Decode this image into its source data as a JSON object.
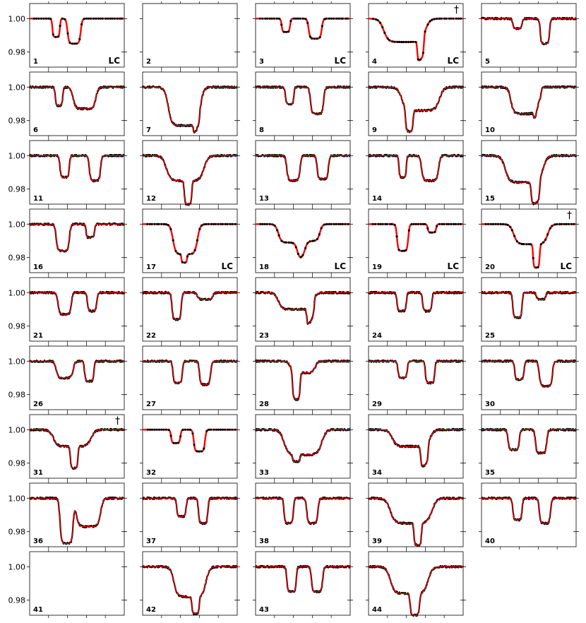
{
  "chart_data": {
    "type": "line",
    "grid": false,
    "y_ticks": [
      "1.00",
      "0.98"
    ],
    "ylim": [
      0.971,
      1.009
    ],
    "xlim": [
      0,
      1
    ],
    "series_colors": {
      "data": "#000000",
      "model": "#ff0000"
    },
    "panels": [
      {
        "id": "1",
        "tag": "LC",
        "dagger": false,
        "empty": false,
        "dips": [
          [
            0.28,
            0.04,
            0.011
          ],
          [
            0.47,
            0.07,
            0.015
          ]
        ],
        "model": "full"
      },
      {
        "id": "2",
        "tag": "",
        "dagger": false,
        "empty": true,
        "dips": [],
        "model": "none"
      },
      {
        "id": "3",
        "tag": "LC",
        "dagger": false,
        "empty": false,
        "dips": [
          [
            0.32,
            0.045,
            0.008
          ],
          [
            0.63,
            0.07,
            0.012
          ]
        ],
        "model": "full"
      },
      {
        "id": "4",
        "tag": "LC",
        "dagger": true,
        "empty": false,
        "dips": [
          [
            0.38,
            0.22,
            0.014
          ],
          [
            0.55,
            0.035,
            0.012
          ]
        ],
        "model": "full"
      },
      {
        "id": "5",
        "tag": "",
        "dagger": false,
        "empty": false,
        "dips": [
          [
            0.38,
            0.05,
            0.006
          ],
          [
            0.67,
            0.05,
            0.015
          ]
        ],
        "model": "partial"
      },
      {
        "id": "6",
        "tag": "",
        "dagger": false,
        "empty": false,
        "dips": [
          [
            0.31,
            0.04,
            0.011
          ],
          [
            0.58,
            0.12,
            0.013
          ]
        ],
        "model": "partial"
      },
      {
        "id": "7",
        "tag": "",
        "dagger": false,
        "empty": false,
        "dips": [
          [
            0.44,
            0.17,
            0.023
          ],
          [
            0.57,
            0.035,
            0.005
          ]
        ],
        "model": "partial"
      },
      {
        "id": "8",
        "tag": "",
        "dagger": false,
        "empty": false,
        "dips": [
          [
            0.36,
            0.045,
            0.01
          ],
          [
            0.65,
            0.07,
            0.016
          ]
        ],
        "model": "partial"
      },
      {
        "id": "9",
        "tag": "",
        "dagger": false,
        "empty": false,
        "dips": [
          [
            0.43,
            0.04,
            0.013
          ],
          [
            0.55,
            0.2,
            0.014
          ]
        ],
        "model": "partial"
      },
      {
        "id": "10",
        "tag": "",
        "dagger": false,
        "empty": false,
        "dips": [
          [
            0.45,
            0.14,
            0.016
          ],
          [
            0.59,
            0.04,
            0.005
          ]
        ],
        "model": "partial"
      },
      {
        "id": "11",
        "tag": "",
        "dagger": false,
        "empty": false,
        "dips": [
          [
            0.37,
            0.05,
            0.013
          ],
          [
            0.69,
            0.06,
            0.015
          ]
        ],
        "model": "partial"
      },
      {
        "id": "12",
        "tag": "",
        "dagger": false,
        "empty": false,
        "dips": [
          [
            0.45,
            0.2,
            0.015
          ],
          [
            0.48,
            0.04,
            0.014
          ]
        ],
        "model": "partial"
      },
      {
        "id": "13",
        "tag": "",
        "dagger": false,
        "empty": false,
        "dips": [
          [
            0.4,
            0.07,
            0.015
          ],
          [
            0.71,
            0.06,
            0.014
          ]
        ],
        "model": "partial"
      },
      {
        "id": "14",
        "tag": "",
        "dagger": false,
        "empty": false,
        "dips": [
          [
            0.36,
            0.04,
            0.013
          ],
          [
            0.65,
            0.09,
            0.015
          ]
        ],
        "model": "partial"
      },
      {
        "id": "15",
        "tag": "",
        "dagger": false,
        "empty": false,
        "dips": [
          [
            0.45,
            0.2,
            0.016
          ],
          [
            0.57,
            0.045,
            0.013
          ]
        ],
        "model": "partial"
      },
      {
        "id": "16",
        "tag": "",
        "dagger": false,
        "empty": false,
        "dips": [
          [
            0.35,
            0.07,
            0.016
          ],
          [
            0.64,
            0.045,
            0.008
          ]
        ],
        "model": "partial"
      },
      {
        "id": "17",
        "tag": "LC",
        "dagger": false,
        "empty": false,
        "dips": [
          [
            0.45,
            0.13,
            0.018
          ],
          [
            0.44,
            0.03,
            0.005
          ]
        ],
        "model": "full"
      },
      {
        "id": "18",
        "tag": "LC",
        "dagger": false,
        "empty": false,
        "dips": [
          [
            0.38,
            0.14,
            0.011
          ],
          [
            0.56,
            0.12,
            0.01
          ]
        ],
        "model": "full"
      },
      {
        "id": "19",
        "tag": "LC",
        "dagger": false,
        "empty": false,
        "dips": [
          [
            0.36,
            0.06,
            0.016
          ],
          [
            0.67,
            0.045,
            0.005
          ]
        ],
        "model": "full"
      },
      {
        "id": "20",
        "tag": "LC",
        "dagger": true,
        "empty": false,
        "dips": [
          [
            0.52,
            0.18,
            0.012
          ],
          [
            0.58,
            0.035,
            0.014
          ]
        ],
        "model": "full"
      },
      {
        "id": "21",
        "tag": "",
        "dagger": false,
        "empty": false,
        "dips": [
          [
            0.37,
            0.07,
            0.013
          ],
          [
            0.66,
            0.05,
            0.011
          ]
        ],
        "model": "partial"
      },
      {
        "id": "22",
        "tag": "",
        "dagger": false,
        "empty": false,
        "dips": [
          [
            0.36,
            0.05,
            0.016
          ],
          [
            0.66,
            0.08,
            0.004
          ]
        ],
        "model": "partial"
      },
      {
        "id": "23",
        "tag": "",
        "dagger": false,
        "empty": false,
        "dips": [
          [
            0.42,
            0.18,
            0.01
          ],
          [
            0.58,
            0.04,
            0.01
          ]
        ],
        "model": "partial"
      },
      {
        "id": "24",
        "tag": "",
        "dagger": false,
        "empty": false,
        "dips": [
          [
            0.35,
            0.05,
            0.011
          ],
          [
            0.62,
            0.05,
            0.011
          ]
        ],
        "model": "partial"
      },
      {
        "id": "25",
        "tag": "",
        "dagger": false,
        "empty": false,
        "dips": [
          [
            0.38,
            0.05,
            0.015
          ],
          [
            0.63,
            0.05,
            0.004
          ]
        ],
        "model": "partial"
      },
      {
        "id": "26",
        "tag": "",
        "dagger": false,
        "empty": false,
        "dips": [
          [
            0.37,
            0.09,
            0.01
          ],
          [
            0.63,
            0.05,
            0.012
          ]
        ],
        "model": "partial"
      },
      {
        "id": "27",
        "tag": "",
        "dagger": false,
        "empty": false,
        "dips": [
          [
            0.37,
            0.05,
            0.013
          ],
          [
            0.66,
            0.06,
            0.014
          ]
        ],
        "model": "partial"
      },
      {
        "id": "28",
        "tag": "",
        "dagger": false,
        "empty": false,
        "dips": [
          [
            0.43,
            0.04,
            0.016
          ],
          [
            0.5,
            0.13,
            0.007
          ]
        ],
        "model": "partial"
      },
      {
        "id": "29",
        "tag": "",
        "dagger": false,
        "empty": false,
        "dips": [
          [
            0.36,
            0.05,
            0.01
          ],
          [
            0.65,
            0.05,
            0.013
          ]
        ],
        "model": "partial"
      },
      {
        "id": "30",
        "tag": "",
        "dagger": false,
        "empty": false,
        "dips": [
          [
            0.4,
            0.05,
            0.011
          ],
          [
            0.68,
            0.07,
            0.015
          ]
        ],
        "model": "partial"
      },
      {
        "id": "31",
        "tag": "",
        "dagger": true,
        "empty": false,
        "dips": [
          [
            0.45,
            0.2,
            0.01
          ],
          [
            0.47,
            0.04,
            0.013
          ]
        ],
        "model": "partial"
      },
      {
        "id": "32",
        "tag": "",
        "dagger": false,
        "empty": false,
        "dips": [
          [
            0.35,
            0.05,
            0.008
          ],
          [
            0.6,
            0.06,
            0.013
          ]
        ],
        "model": "full"
      },
      {
        "id": "33",
        "tag": "",
        "dagger": false,
        "empty": false,
        "dips": [
          [
            0.5,
            0.2,
            0.015
          ],
          [
            0.43,
            0.04,
            0.004
          ]
        ],
        "model": "partial"
      },
      {
        "id": "34",
        "tag": "",
        "dagger": false,
        "empty": false,
        "dips": [
          [
            0.45,
            0.2,
            0.01
          ],
          [
            0.59,
            0.04,
            0.012
          ]
        ],
        "model": "partial"
      },
      {
        "id": "35",
        "tag": "",
        "dagger": false,
        "empty": false,
        "dips": [
          [
            0.34,
            0.06,
            0.012
          ],
          [
            0.63,
            0.06,
            0.014
          ]
        ],
        "model": "partial"
      },
      {
        "id": "36",
        "tag": "",
        "dagger": false,
        "empty": false,
        "dips": [
          [
            0.39,
            0.07,
            0.027
          ],
          [
            0.62,
            0.13,
            0.017
          ]
        ],
        "model": "partial"
      },
      {
        "id": "37",
        "tag": "",
        "dagger": false,
        "empty": false,
        "dips": [
          [
            0.41,
            0.05,
            0.011
          ],
          [
            0.64,
            0.05,
            0.015
          ]
        ],
        "model": "partial"
      },
      {
        "id": "38",
        "tag": "",
        "dagger": false,
        "empty": false,
        "dips": [
          [
            0.35,
            0.05,
            0.015
          ],
          [
            0.6,
            0.06,
            0.015
          ]
        ],
        "model": "partial"
      },
      {
        "id": "39",
        "tag": "",
        "dagger": false,
        "empty": false,
        "dips": [
          [
            0.45,
            0.22,
            0.015
          ],
          [
            0.52,
            0.04,
            0.013
          ]
        ],
        "model": "partial"
      },
      {
        "id": "40",
        "tag": "",
        "dagger": false,
        "empty": false,
        "dips": [
          [
            0.38,
            0.05,
            0.013
          ],
          [
            0.67,
            0.06,
            0.015
          ]
        ],
        "model": "partial"
      },
      {
        "id": "41",
        "tag": "",
        "dagger": false,
        "empty": true,
        "dips": [],
        "model": "none"
      },
      {
        "id": "42",
        "tag": "",
        "dagger": false,
        "empty": false,
        "dips": [
          [
            0.5,
            0.17,
            0.018
          ],
          [
            0.56,
            0.04,
            0.01
          ]
        ],
        "model": "partial"
      },
      {
        "id": "43",
        "tag": "",
        "dagger": false,
        "empty": false,
        "dips": [
          [
            0.38,
            0.05,
            0.015
          ],
          [
            0.65,
            0.06,
            0.015
          ]
        ],
        "model": "partial"
      },
      {
        "id": "44",
        "tag": "",
        "dagger": false,
        "empty": false,
        "dips": [
          [
            0.43,
            0.2,
            0.016
          ],
          [
            0.49,
            0.05,
            0.013
          ]
        ],
        "model": "partial"
      }
    ]
  }
}
